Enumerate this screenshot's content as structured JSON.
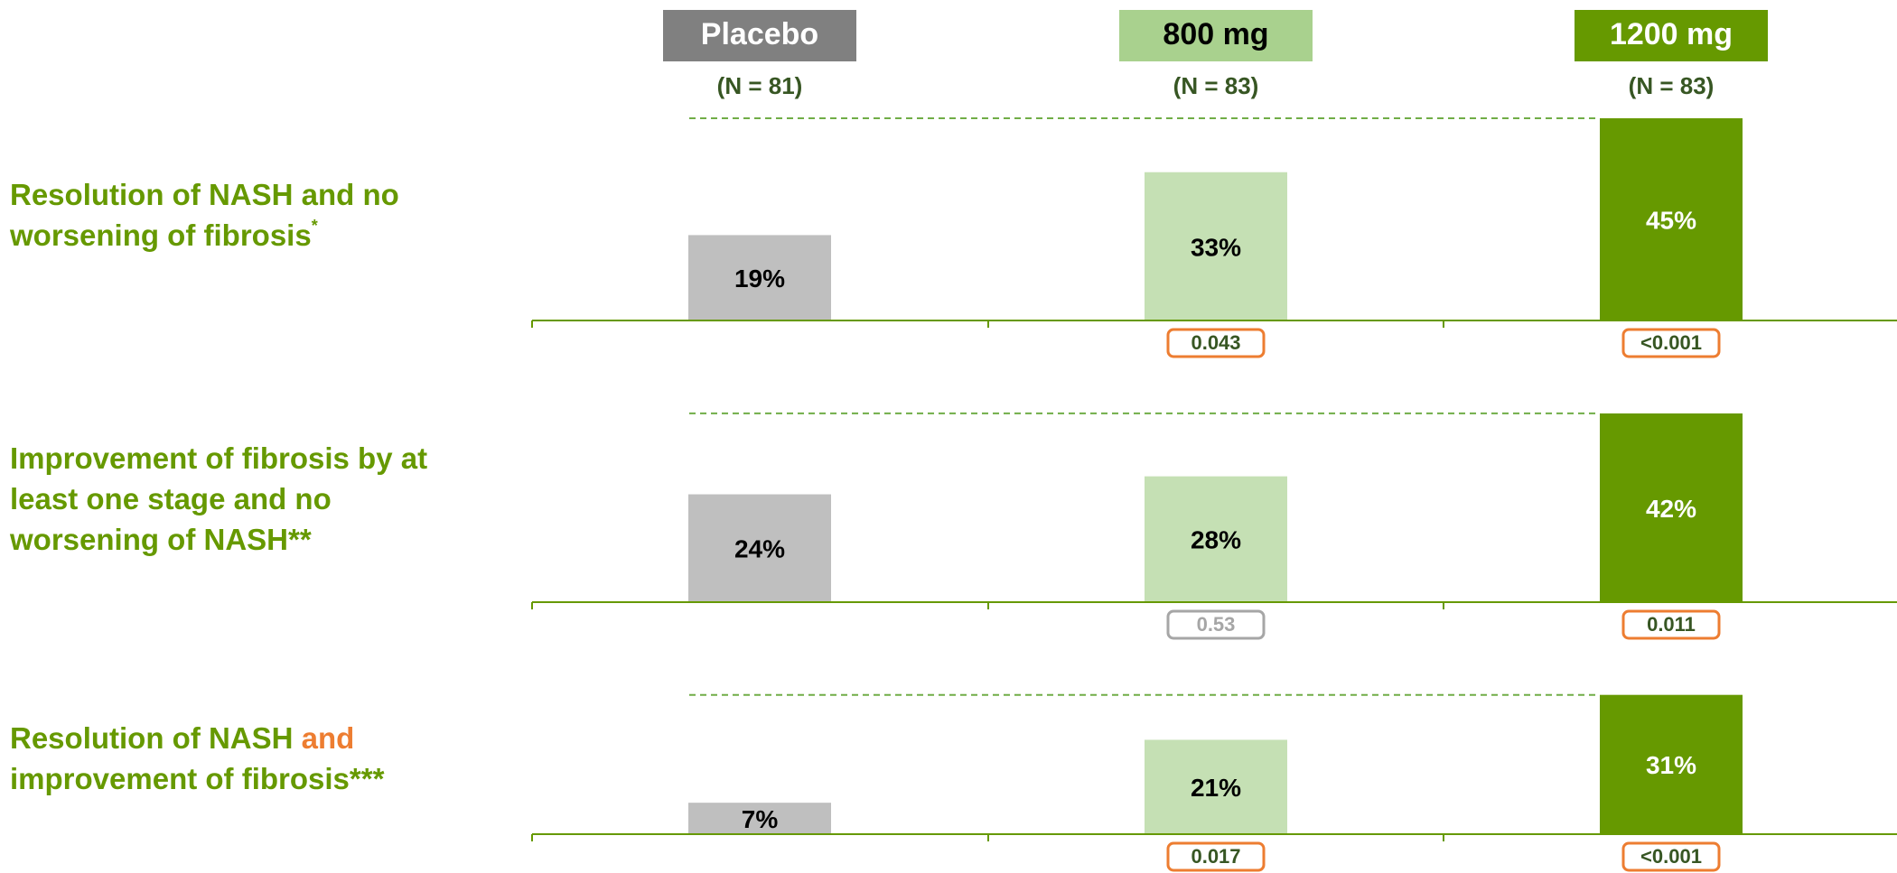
{
  "chart_data": {
    "type": "bar",
    "categories": [
      "Placebo",
      "800 mg",
      "1200 mg"
    ],
    "n_labels": [
      "(N = 81)",
      "(N = 83)",
      "(N = 83)"
    ],
    "header_colors": [
      "#808080",
      "#a9d18e",
      "#669900"
    ],
    "header_text_colors": [
      "#ffffff",
      "#000000",
      "#ffffff"
    ],
    "colors": [
      "#bfbfbf",
      "#c5e0b4",
      "#669900"
    ],
    "value_label_colors": [
      "#000000",
      "#000000",
      "#ffffff"
    ],
    "ylim": [
      0,
      45
    ],
    "panels": [
      {
        "label_lines": [
          [
            {
              "text": "Resolution of NASH and no"
            }
          ],
          [
            {
              "text": "worsening of fibrosis"
            },
            {
              "text": "*",
              "sup": true
            }
          ]
        ],
        "values": [
          19,
          33,
          45
        ],
        "value_labels": [
          "19%",
          "33%",
          "45%"
        ],
        "p_values": [
          "0.043",
          "<0.001"
        ],
        "p_colors": [
          "#ed7d31",
          "#ed7d31"
        ]
      },
      {
        "label_lines": [
          [
            {
              "text": "Improvement of fibrosis by at"
            }
          ],
          [
            {
              "text": "least one stage and no"
            }
          ],
          [
            {
              "text": "worsening of NASH**"
            }
          ]
        ],
        "values": [
          24,
          28,
          42
        ],
        "value_labels": [
          "24%",
          "28%",
          "42%"
        ],
        "p_values": [
          "0.53",
          "0.011"
        ],
        "p_colors": [
          "#a6a6a6",
          "#ed7d31"
        ]
      },
      {
        "label_lines": [
          [
            {
              "text": "Resolution of NASH "
            },
            {
              "text": "and",
              "color": "#ed7d31"
            }
          ],
          [
            {
              "text": "improvement of fibrosis***"
            }
          ]
        ],
        "values": [
          7,
          21,
          31
        ],
        "value_labels": [
          "7%",
          "21%",
          "31%"
        ],
        "p_values": [
          "0.017",
          "<0.001"
        ],
        "p_colors": [
          "#ed7d31",
          "#ed7d31"
        ]
      }
    ]
  }
}
